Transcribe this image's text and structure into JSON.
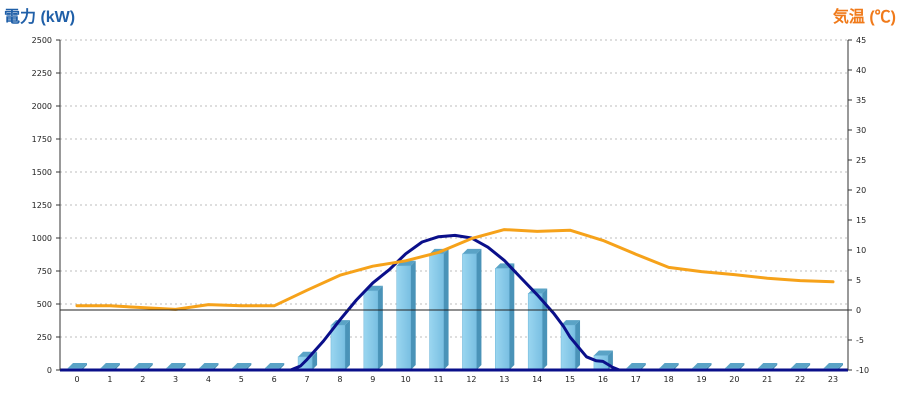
{
  "chart_data": {
    "type": "bar",
    "categories": [
      "0",
      "1",
      "2",
      "3",
      "4",
      "5",
      "6",
      "7",
      "8",
      "9",
      "10",
      "11",
      "12",
      "13",
      "14",
      "15",
      "16",
      "17",
      "18",
      "19",
      "20",
      "21",
      "22",
      "23"
    ],
    "y_left": {
      "label": "電力 (kW)",
      "label_color": "#1f5fa8",
      "ylim": [
        0,
        2500
      ],
      "ticks": [
        0,
        250,
        500,
        750,
        1000,
        1250,
        1500,
        1750,
        2000,
        2250,
        2500
      ]
    },
    "y_right": {
      "label": "気温 (℃)",
      "label_color": "#f07a1a",
      "ylim": [
        -10,
        45
      ],
      "ticks": [
        -10,
        -5,
        0,
        5,
        10,
        15,
        20,
        25,
        30,
        35,
        40,
        45
      ]
    },
    "series": [
      {
        "type": "bar",
        "axis": "left",
        "color": "#86cbea",
        "values": [
          15,
          15,
          15,
          15,
          15,
          15,
          15,
          100,
          340,
          600,
          790,
          880,
          880,
          770,
          580,
          340,
          110,
          15,
          15,
          15,
          15,
          15,
          15,
          15
        ]
      },
      {
        "type": "line",
        "axis": "left",
        "color": "#0a0f8a",
        "x": [
          6.5,
          6.8,
          7,
          7.5,
          8,
          8.5,
          9,
          9.5,
          10,
          10.5,
          11,
          11.5,
          12,
          12.5,
          13,
          13.5,
          14,
          14.5,
          14.8,
          15,
          15.3,
          15.5,
          15.8,
          16,
          16.3,
          16.5
        ],
        "values": [
          0,
          30,
          80,
          220,
          380,
          530,
          660,
          760,
          880,
          970,
          1010,
          1020,
          1000,
          930,
          830,
          700,
          570,
          430,
          330,
          250,
          160,
          100,
          70,
          65,
          20,
          0
        ]
      },
      {
        "type": "line",
        "axis": "right",
        "color": "#f6a21a",
        "values": [
          0.7,
          0.7,
          0.4,
          0.1,
          0.9,
          0.7,
          0.7,
          3.3,
          5.8,
          7.3,
          8.2,
          9.6,
          11.9,
          13.4,
          13.1,
          13.3,
          11.6,
          9.3,
          7.1,
          6.4,
          5.9,
          5.3,
          4.9,
          4.7
        ]
      }
    ],
    "grid": true,
    "reference_line_right": 0
  }
}
